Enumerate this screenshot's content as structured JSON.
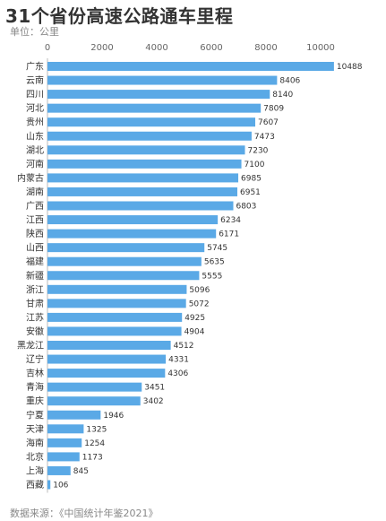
{
  "chart_data": {
    "type": "bar",
    "orientation": "horizontal",
    "title": "31个省份高速公路通车里程",
    "unit_label": "单位：公里",
    "source": "数据来源：《中国统计年鉴2021》",
    "xlim": [
      0,
      10800
    ],
    "xticks": [
      0,
      2000,
      4000,
      6000,
      8000,
      10000
    ],
    "grid": false,
    "bar_color": "#5aa9e6",
    "categories": [
      "广东",
      "云南",
      "四川",
      "河北",
      "贵州",
      "山东",
      "湖北",
      "河南",
      "内蒙古",
      "湖南",
      "广西",
      "江西",
      "陕西",
      "山西",
      "福建",
      "新疆",
      "浙江",
      "甘肃",
      "江苏",
      "安徽",
      "黑龙江",
      "辽宁",
      "吉林",
      "青海",
      "重庆",
      "宁夏",
      "天津",
      "海南",
      "北京",
      "上海",
      "西藏"
    ],
    "values": [
      10488,
      8406,
      8140,
      7809,
      7607,
      7473,
      7230,
      7100,
      6985,
      6951,
      6803,
      6234,
      6171,
      5745,
      5635,
      5555,
      5096,
      5072,
      4925,
      4904,
      4512,
      4331,
      4306,
      3451,
      3402,
      1946,
      1325,
      1254,
      1173,
      845,
      106
    ]
  }
}
